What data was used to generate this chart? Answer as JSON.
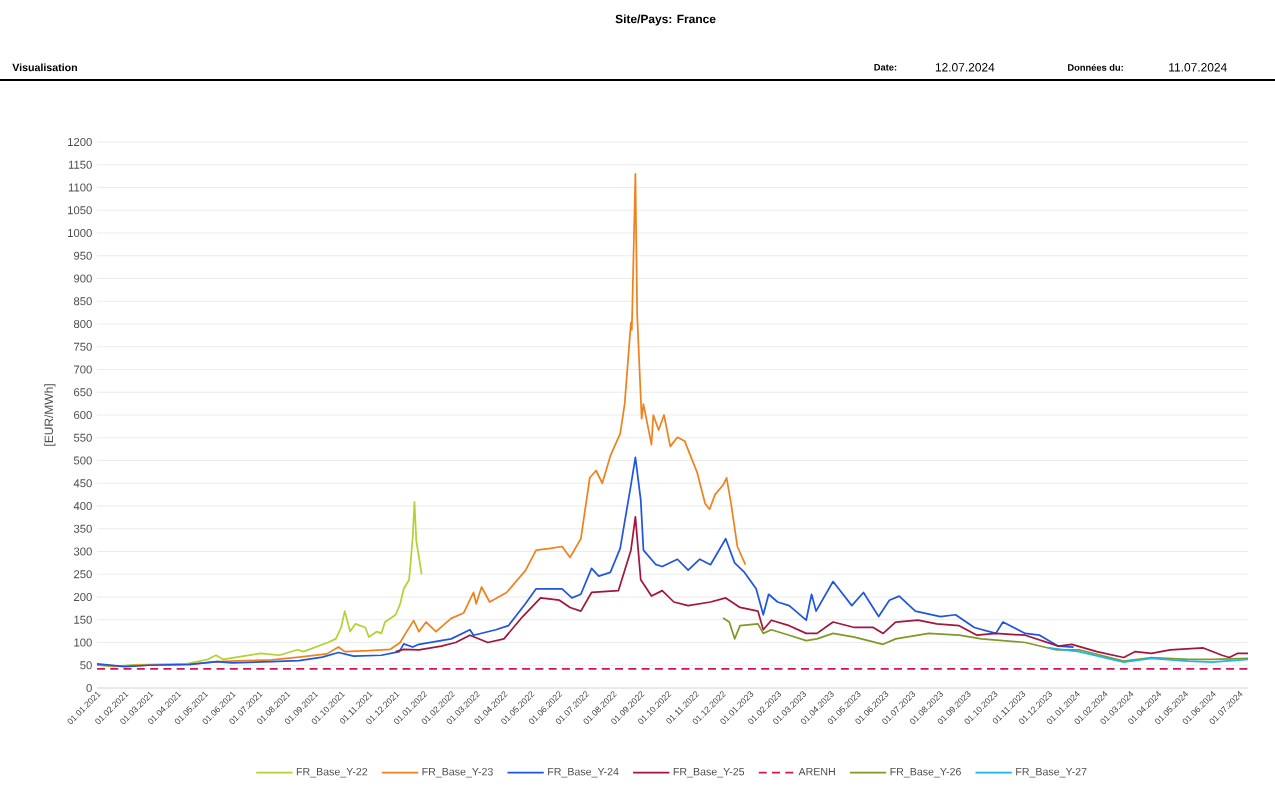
{
  "chart_data": {
    "type": "line",
    "title": "Site/Pays: France",
    "annotations": [
      "Visualisation",
      "Date:",
      "12.07.2024",
      "Données du:",
      "11.07.2024"
    ],
    "ylabel": "[EUR/MWh]",
    "xlim": [
      "2021-01-01",
      "2024-07-11"
    ],
    "ylim": [
      0,
      1200
    ],
    "yticks": [
      0,
      50,
      100,
      150,
      200,
      250,
      300,
      350,
      400,
      450,
      500,
      550,
      600,
      650,
      700,
      750,
      800,
      850,
      900,
      950,
      1000,
      1050,
      1100,
      1150,
      1200
    ],
    "xticks": [
      {
        "value": "2021-01-01",
        "label": "01.01.2021"
      },
      {
        "value": "2021-02-01",
        "label": "01.02.2021"
      },
      {
        "value": "2021-03-01",
        "label": "01.03.2021"
      },
      {
        "value": "2021-04-01",
        "label": "01.04.2021"
      },
      {
        "value": "2021-05-01",
        "label": "01.05.2021"
      },
      {
        "value": "2021-06-01",
        "label": "01.06.2021"
      },
      {
        "value": "2021-07-01",
        "label": "01.07.2021"
      },
      {
        "value": "2021-08-01",
        "label": "01.08.2021"
      },
      {
        "value": "2021-09-01",
        "label": "01.09.2021"
      },
      {
        "value": "2021-10-01",
        "label": "01.10.2021"
      },
      {
        "value": "2021-11-01",
        "label": "01.11.2021"
      },
      {
        "value": "2021-12-01",
        "label": "01.12.2021"
      },
      {
        "value": "2022-01-01",
        "label": "01.01.2022"
      },
      {
        "value": "2022-02-01",
        "label": "01.02.2022"
      },
      {
        "value": "2022-03-01",
        "label": "01.03.2022"
      },
      {
        "value": "2022-04-01",
        "label": "01.04.2022"
      },
      {
        "value": "2022-05-01",
        "label": "01.05.2022"
      },
      {
        "value": "2022-06-01",
        "label": "01.06.2022"
      },
      {
        "value": "2022-07-01",
        "label": "01.07.2022"
      },
      {
        "value": "2022-08-01",
        "label": "01.08.2022"
      },
      {
        "value": "2022-09-01",
        "label": "01.09.2022"
      },
      {
        "value": "2022-10-01",
        "label": "01.10.2022"
      },
      {
        "value": "2022-11-01",
        "label": "01.11.2022"
      },
      {
        "value": "2022-12-01",
        "label": "01.12.2022"
      },
      {
        "value": "2023-01-01",
        "label": "01.01.2023"
      },
      {
        "value": "2023-02-01",
        "label": "01.02.2023"
      },
      {
        "value": "2023-03-01",
        "label": "01.03.2023"
      },
      {
        "value": "2023-04-01",
        "label": "01.04.2023"
      },
      {
        "value": "2023-05-01",
        "label": "01.05.2023"
      },
      {
        "value": "2023-06-01",
        "label": "01.06.2023"
      },
      {
        "value": "2023-07-01",
        "label": "01.07.2023"
      },
      {
        "value": "2023-08-01",
        "label": "01.08.2023"
      },
      {
        "value": "2023-09-01",
        "label": "01.09.2023"
      },
      {
        "value": "2023-10-01",
        "label": "01.10.2023"
      },
      {
        "value": "2023-11-01",
        "label": "01.11.2023"
      },
      {
        "value": "2023-12-01",
        "label": "01.12.2023"
      },
      {
        "value": "2024-01-01",
        "label": "01.01.2024"
      },
      {
        "value": "2024-02-01",
        "label": "01.02.2024"
      },
      {
        "value": "2024-03-01",
        "label": "01.03.2024"
      },
      {
        "value": "2024-04-01",
        "label": "01.04.2024"
      },
      {
        "value": "2024-05-01",
        "label": "01.05.2024"
      },
      {
        "value": "2024-06-01",
        "label": "01.06.2024"
      },
      {
        "value": "2024-07-01",
        "label": "01.07.2024"
      }
    ],
    "grid": "y",
    "legend": "bottom",
    "marker": "none",
    "series": [
      {
        "name": "FR_Base_Y-22",
        "color": "#b2d235",
        "x": [
          "2021-01-01",
          "2021-01-19",
          "2021-02-10",
          "2021-04-11",
          "2021-05-05",
          "2021-05-14",
          "2021-05-22",
          "2021-07-03",
          "2021-07-24",
          "2021-08-13",
          "2021-08-20",
          "2021-09-16",
          "2021-09-25",
          "2021-10-01",
          "2021-10-05",
          "2021-10-11",
          "2021-10-17",
          "2021-10-28",
          "2021-11-01",
          "2021-11-10",
          "2021-11-15",
          "2021-11-19",
          "2021-12-01",
          "2021-12-06",
          "2021-12-10",
          "2021-12-16",
          "2021-12-18",
          "2021-12-20",
          "2021-12-22",
          "2021-12-24",
          "2021-12-30"
        ],
        "values": [
          51,
          47,
          51,
          53,
          63,
          72,
          63,
          76,
          72,
          84,
          80,
          100,
          108,
          133,
          169,
          124,
          141,
          133,
          112,
          124,
          120,
          145,
          161,
          185,
          218,
          238,
          283,
          332,
          409,
          324,
          250
        ]
      },
      {
        "name": "FR_Base_Y-23",
        "color": "#f0821e",
        "x": [
          "2021-01-01",
          "2021-02-01",
          "2021-03-01",
          "2021-04-15",
          "2021-05-15",
          "2021-06-15",
          "2021-07-15",
          "2021-08-15",
          "2021-09-15",
          "2021-09-28",
          "2021-10-05",
          "2021-11-01",
          "2021-11-25",
          "2021-12-06",
          "2021-12-12",
          "2021-12-21",
          "2021-12-27",
          "2022-01-04",
          "2022-01-15",
          "2022-02-01",
          "2022-02-15",
          "2022-02-26",
          "2022-03-01",
          "2022-03-07",
          "2022-03-16",
          "2022-04-04",
          "2022-04-25",
          "2022-05-07",
          "2022-05-23",
          "2022-06-05",
          "2022-06-14",
          "2022-06-26",
          "2022-07-06",
          "2022-07-13",
          "2022-07-20",
          "2022-07-29",
          "2022-08-09",
          "2022-08-14",
          "2022-08-21",
          "2022-08-22",
          "2022-08-26",
          "2022-08-28",
          "2022-09-02",
          "2022-09-04",
          "2022-09-13",
          "2022-09-15",
          "2022-09-21",
          "2022-09-27",
          "2022-10-04",
          "2022-10-12",
          "2022-10-20",
          "2022-11-03",
          "2022-11-12",
          "2022-11-17",
          "2022-11-23",
          "2022-12-02",
          "2022-12-06",
          "2022-12-11",
          "2022-12-18",
          "2022-12-27"
        ],
        "values": [
          50,
          48,
          51,
          52,
          58,
          60,
          62,
          68,
          75,
          90,
          80,
          82,
          85,
          100,
          120,
          148,
          124,
          145,
          124,
          153,
          165,
          210,
          185,
          222,
          189,
          210,
          258,
          303,
          307,
          311,
          287,
          328,
          462,
          478,
          450,
          510,
          559,
          624,
          803,
          787,
          1130,
          820,
          592,
          624,
          535,
          600,
          567,
          600,
          531,
          551,
          543,
          474,
          405,
          393,
          425,
          446,
          462,
          405,
          311,
          271
        ]
      },
      {
        "name": "FR_Base_Y-24",
        "color": "#1f55e0",
        "x": [
          "2021-01-01",
          "2021-02-01",
          "2021-03-01",
          "2021-04-15",
          "2021-05-15",
          "2021-06-01",
          "2021-07-15",
          "2021-08-15",
          "2021-09-10",
          "2021-09-28",
          "2021-10-15",
          "2021-11-15",
          "2021-12-05",
          "2021-12-10",
          "2021-12-20",
          "2021-12-27",
          "2022-02-01",
          "2022-02-22",
          "2022-02-26",
          "2022-03-23",
          "2022-04-06",
          "2022-04-25",
          "2022-05-07",
          "2022-06-05",
          "2022-06-16",
          "2022-06-26",
          "2022-07-08",
          "2022-07-16",
          "2022-07-29",
          "2022-08-09",
          "2022-08-21",
          "2022-08-26",
          "2022-09-01",
          "2022-09-04",
          "2022-09-18",
          "2022-09-25",
          "2022-10-12",
          "2022-10-24",
          "2022-11-06",
          "2022-11-18",
          "2022-12-05",
          "2022-12-15",
          "2022-12-26",
          "2023-01-08",
          "2023-01-16",
          "2023-01-22",
          "2023-02-01",
          "2023-02-14",
          "2023-03-05",
          "2023-03-11",
          "2023-03-16",
          "2023-04-04",
          "2023-04-25",
          "2023-05-08",
          "2023-05-25",
          "2023-06-06",
          "2023-06-17",
          "2023-07-05",
          "2023-08-02",
          "2023-08-19",
          "2023-09-09",
          "2023-10-03",
          "2023-10-11",
          "2023-11-05",
          "2023-11-21",
          "2023-12-12",
          "2023-12-29"
        ],
        "values": [
          53,
          47,
          50,
          52,
          58,
          55,
          58,
          60,
          68,
          78,
          70,
          72,
          80,
          97,
          90,
          96,
          108,
          128,
          116,
          128,
          137,
          185,
          218,
          218,
          198,
          206,
          263,
          246,
          254,
          307,
          446,
          507,
          413,
          303,
          271,
          267,
          283,
          259,
          283,
          271,
          328,
          275,
          254,
          218,
          161,
          206,
          189,
          181,
          149,
          206,
          169,
          234,
          181,
          210,
          157,
          193,
          202,
          169,
          157,
          161,
          133,
          120,
          145,
          120,
          116,
          92,
          90
        ]
      },
      {
        "name": "FR_Base_Y-25",
        "color": "#a3163c",
        "x": [
          "2021-12-01",
          "2021-12-10",
          "2021-12-27",
          "2022-01-21",
          "2022-02-06",
          "2022-02-22",
          "2022-03-14",
          "2022-04-01",
          "2022-04-22",
          "2022-05-12",
          "2022-06-02",
          "2022-06-14",
          "2022-06-26",
          "2022-07-08",
          "2022-08-07",
          "2022-08-21",
          "2022-08-26",
          "2022-09-01",
          "2022-09-13",
          "2022-09-25",
          "2022-10-08",
          "2022-10-24",
          "2022-11-18",
          "2022-12-05",
          "2022-12-21",
          "2023-01-10",
          "2023-01-16",
          "2023-01-25",
          "2023-02-14",
          "2023-03-05",
          "2023-03-17",
          "2023-04-04",
          "2023-04-28",
          "2023-05-19",
          "2023-05-30",
          "2023-06-13",
          "2023-07-08",
          "2023-07-29",
          "2023-08-23",
          "2023-09-12",
          "2023-10-03",
          "2023-11-05",
          "2023-12-12",
          "2023-12-27",
          "2024-01-24",
          "2024-02-23",
          "2024-03-07",
          "2024-03-25",
          "2024-04-15",
          "2024-05-22",
          "2024-06-12",
          "2024-06-20",
          "2024-06-29",
          "2024-07-11"
        ],
        "values": [
          80,
          85,
          84,
          92,
          100,
          116,
          100,
          108,
          157,
          198,
          193,
          177,
          169,
          210,
          214,
          303,
          376,
          238,
          202,
          214,
          189,
          181,
          189,
          198,
          177,
          169,
          128,
          149,
          137,
          120,
          120,
          145,
          133,
          133,
          120,
          145,
          149,
          141,
          137,
          116,
          120,
          116,
          92,
          96,
          80,
          67,
          80,
          76,
          84,
          88,
          72,
          67,
          76,
          76
        ]
      },
      {
        "name": "ARENH",
        "color": "#d4145a",
        "line_style": "dashed",
        "x": [
          "2021-01-01",
          "2024-07-11"
        ],
        "values": [
          42,
          42
        ]
      },
      {
        "name": "FR_Base_Y-26",
        "color": "#7f9a28",
        "x": [
          "2022-12-02",
          "2022-12-09",
          "2022-12-15",
          "2022-12-21",
          "2023-01-10",
          "2023-01-16",
          "2023-01-25",
          "2023-02-14",
          "2023-03-05",
          "2023-03-17",
          "2023-04-04",
          "2023-04-28",
          "2023-05-30",
          "2023-06-13",
          "2023-07-20",
          "2023-08-23",
          "2023-09-17",
          "2023-11-05",
          "2023-12-09",
          "2024-01-04",
          "2024-02-23",
          "2024-03-25",
          "2024-05-05",
          "2024-06-01",
          "2024-07-11"
        ],
        "values": [
          154,
          145,
          108,
          137,
          141,
          120,
          128,
          116,
          104,
          108,
          120,
          112,
          96,
          108,
          120,
          116,
          108,
          100,
          84,
          84,
          59,
          67,
          63,
          63,
          65
        ]
      },
      {
        "name": "FR_Base_Y-27",
        "color": "#1eb4ea",
        "x": [
          "2023-12-01",
          "2024-01-04",
          "2024-02-23",
          "2024-03-25",
          "2024-05-05",
          "2024-06-01",
          "2024-07-11"
        ],
        "values": [
          88,
          80,
          57,
          65,
          59,
          57,
          63
        ]
      }
    ]
  }
}
